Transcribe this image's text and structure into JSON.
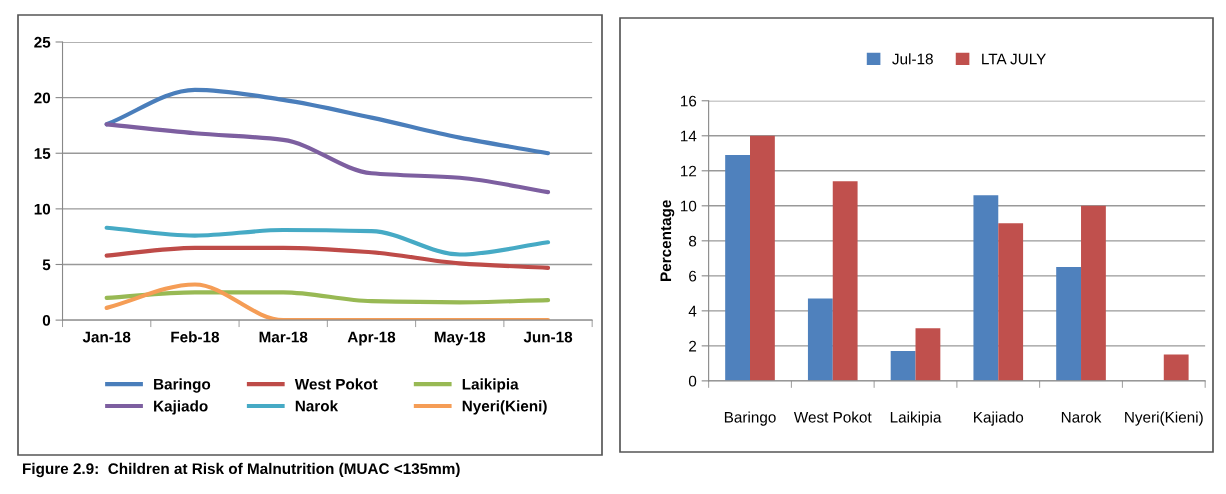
{
  "chart_data": [
    {
      "type": "line",
      "categories": [
        "Jan-18",
        "Feb-18",
        "Mar-18",
        "Apr-18",
        "May-18",
        "Jun-18"
      ],
      "series": [
        {
          "name": "Baringo",
          "color": "#4a7ebb",
          "values": [
            17.6,
            20.7,
            19.8,
            18.2,
            16.4,
            15.0
          ]
        },
        {
          "name": "West Pokot",
          "color": "#be4b48",
          "values": [
            5.8,
            6.5,
            6.5,
            6.1,
            5.1,
            4.7
          ]
        },
        {
          "name": "Laikipia",
          "color": "#98b954",
          "values": [
            2.0,
            2.5,
            2.5,
            1.7,
            1.6,
            1.8
          ]
        },
        {
          "name": "Kajiado",
          "color": "#7d5fa0",
          "values": [
            17.6,
            16.8,
            16.2,
            13.2,
            12.8,
            11.5
          ]
        },
        {
          "name": "Narok",
          "color": "#46aac5",
          "values": [
            8.3,
            7.6,
            8.1,
            8.0,
            5.9,
            7.0
          ]
        },
        {
          "name": "Nyeri(Kieni)",
          "color": "#f59d56",
          "values": [
            1.1,
            3.2,
            0,
            0,
            0,
            0
          ]
        }
      ],
      "ylim": [
        0,
        25
      ],
      "yticks": [
        0,
        5,
        10,
        15,
        20,
        25
      ],
      "grid": "y",
      "legend": "bottom",
      "annotations": [
        "Figure 2.9:  Children at Risk of Malnutrition (MUAC <135mm)"
      ]
    },
    {
      "type": "bar",
      "categories": [
        "Baringo",
        "West Pokot",
        "Laikipia",
        "Kajiado",
        "Narok",
        "Nyeri(Kieni)"
      ],
      "series": [
        {
          "name": "Jul-18",
          "color": "#4f81bd",
          "values": [
            12.9,
            4.7,
            1.7,
            10.6,
            6.5,
            null
          ]
        },
        {
          "name": "LTA JULY",
          "color": "#c0504d",
          "values": [
            14.0,
            11.4,
            3.0,
            9.0,
            10.0,
            1.5
          ]
        }
      ],
      "ylabel": "Percentage",
      "ylim": [
        0,
        16
      ],
      "yticks": [
        0,
        2,
        4,
        6,
        8,
        10,
        12,
        14,
        16
      ],
      "grid": "y",
      "legend": "top"
    }
  ]
}
